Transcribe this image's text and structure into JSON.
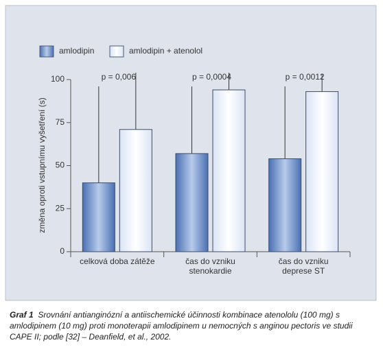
{
  "chart_data": {
    "type": "bar",
    "y_label": "změna oproti vstupnímu vyšetření (s)",
    "categories": [
      "celková doba zátěže",
      "čas do vzniku stenokardie",
      "čas do vzniku deprese ST"
    ],
    "series": [
      {
        "name": "amlodipin",
        "color": "#4a70b4",
        "values": [
          40,
          57,
          54
        ],
        "errors": [
          56,
          39,
          42
        ]
      },
      {
        "name": "amlodipin + atenolol",
        "color": "#dbe4f5",
        "values": [
          71,
          94,
          93
        ],
        "errors": [
          33,
          10,
          10
        ]
      }
    ],
    "annotations": [
      "p = 0,006",
      "p = 0,0004",
      "p = 0,0012"
    ],
    "ylim": [
      0,
      100
    ],
    "yticks": [
      0,
      25,
      50,
      75,
      100
    ]
  },
  "caption": {
    "label": "Graf 1",
    "text": "Srovnání antianginózní a antiischemické účinnosti kombinace atenololu (100 mg) s amlodipinem (10 mg) proti monoterapii amlodipinem u nemocných s anginou pectoris ve studii CAPE II; podle [32] – Deanfield, et al., 2002."
  }
}
